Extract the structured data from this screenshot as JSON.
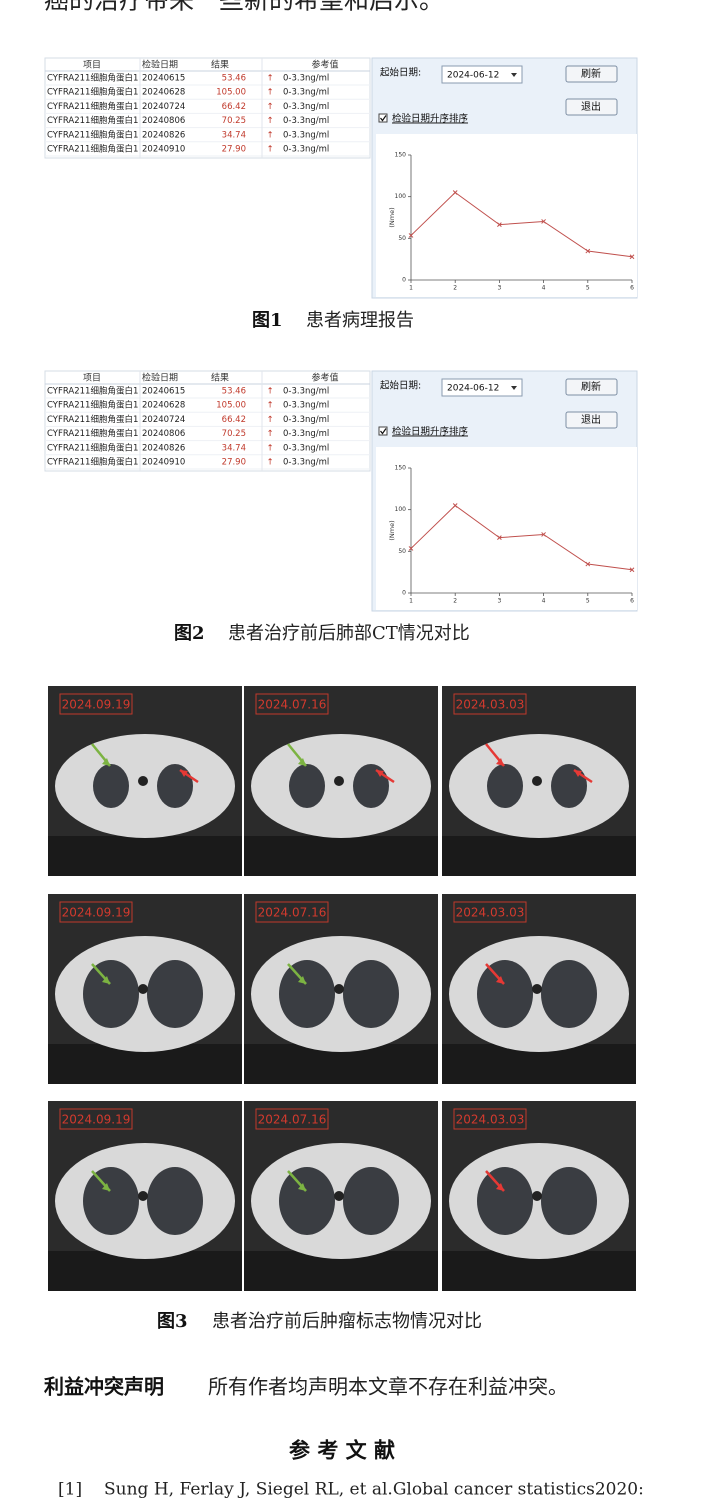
{
  "intro": "癌的治疗带来一些新的希望和启示。",
  "figures": [
    {
      "caption_num": "图1",
      "caption": "患者病理报告",
      "table": {
        "headers": [
          "项目",
          "检验日期",
          "结果",
          "参考值"
        ],
        "rows": [
          [
            "CYFRA211细胞角蛋白1",
            "20240615",
            "53.46",
            "↑",
            "0-3.3ng/ml"
          ],
          [
            "CYFRA211细胞角蛋白1",
            "20240628",
            "105.00",
            "↑",
            "0-3.3ng/ml"
          ],
          [
            "CYFRA211细胞角蛋白1",
            "20240724",
            "66.42",
            "↑",
            "0-3.3ng/ml"
          ],
          [
            "CYFRA211细胞角蛋白1",
            "20240806",
            "70.25",
            "↑",
            "0-3.3ng/ml"
          ],
          [
            "CYFRA211细胞角蛋白1",
            "20240826",
            "34.74",
            "↑",
            "0-3.3ng/ml"
          ],
          [
            "CYFRA211细胞角蛋白1",
            "20240910",
            "27.90",
            "↑",
            "0-3.3ng/ml"
          ]
        ]
      },
      "controls": {
        "start_label": "起始日期:",
        "start_date": "2024-06-12",
        "refresh": "刷新",
        "exit": "退出",
        "sort": "检验日期升序排序"
      },
      "chart_data": {
        "type": "line",
        "ylabel": "(Nme)",
        "x": [
          1,
          2,
          3,
          4,
          5,
          6
        ],
        "values": [
          53.46,
          105.0,
          66.42,
          70.25,
          34.74,
          27.9
        ],
        "color": "#c0504d",
        "xlim": [
          1,
          6
        ],
        "xticks": [
          1,
          2,
          3,
          4,
          5,
          6
        ],
        "ylim": [
          0,
          150
        ],
        "yticks": [
          0,
          50,
          100,
          150
        ]
      }
    },
    {
      "caption_num": "图2",
      "caption": "患者治疗前后肺部CT情况对比",
      "table": {
        "headers": [
          "项目",
          "检验日期",
          "结果",
          "参考值"
        ],
        "rows": [
          [
            "CYFRA211细胞角蛋白1",
            "20240615",
            "53.46",
            "↑",
            "0-3.3ng/ml"
          ],
          [
            "CYFRA211细胞角蛋白1",
            "20240628",
            "105.00",
            "↑",
            "0-3.3ng/ml"
          ],
          [
            "CYFRA211细胞角蛋白1",
            "20240724",
            "66.42",
            "↑",
            "0-3.3ng/ml"
          ],
          [
            "CYFRA211细胞角蛋白1",
            "20240806",
            "70.25",
            "↑",
            "0-3.3ng/ml"
          ],
          [
            "CYFRA211细胞角蛋白1",
            "20240826",
            "34.74",
            "↑",
            "0-3.3ng/ml"
          ],
          [
            "CYFRA211细胞角蛋白1",
            "20240910",
            "27.90",
            "↑",
            "0-3.3ng/ml"
          ]
        ]
      },
      "controls": {
        "start_label": "起始日期:",
        "start_date": "2024-06-12",
        "refresh": "刷新",
        "exit": "退出",
        "sort": "检验日期升序排序"
      },
      "chart_data": {
        "type": "line",
        "ylabel": "(Nme)",
        "x": [
          1,
          2,
          3,
          4,
          5,
          6
        ],
        "values": [
          53.46,
          105.0,
          66.42,
          70.25,
          34.74,
          27.9
        ],
        "color": "#c0504d",
        "xlim": [
          1,
          6
        ],
        "xticks": [
          1,
          2,
          3,
          4,
          5,
          6
        ],
        "ylim": [
          0,
          150
        ],
        "yticks": [
          0,
          50,
          100,
          150
        ]
      }
    }
  ],
  "ct_figure": {
    "caption_num": "图3",
    "caption": "患者治疗前后肿瘤标志物情况对比",
    "rows": [
      [
        "2024.09.19",
        "2024.07.16",
        "2024.03.03"
      ],
      [
        "2024.09.19",
        "2024.07.16",
        "2024.03.03"
      ],
      [
        "2024.09.19",
        "2024.07.16",
        "2024.03.03"
      ]
    ]
  },
  "statement": {
    "label": "利益冲突声明",
    "text": "所有作者均声明本文章不存在利益冲突。"
  },
  "references": {
    "title": "参 考 文 献",
    "items": [
      {
        "num": "[1]",
        "text": "Sung H, Ferlay J, Siegel RL, et al.Global cancer statistics2020:"
      }
    ]
  }
}
